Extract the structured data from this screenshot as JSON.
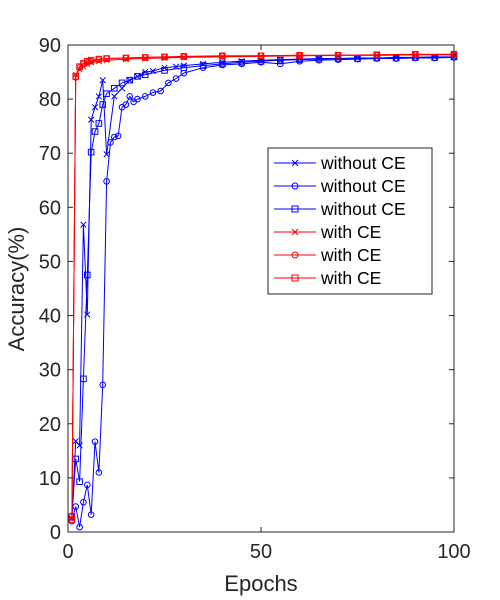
{
  "chart_data": {
    "type": "line",
    "xlabel": "Epochs",
    "ylabel": "Accuracy(%)",
    "xlim": [
      0,
      100
    ],
    "ylim": [
      0,
      90
    ],
    "x_ticks": [
      0,
      50,
      100
    ],
    "y_ticks": [
      0,
      10,
      20,
      30,
      40,
      50,
      60,
      70,
      80,
      90
    ],
    "grid": false,
    "legend_position": "right-middle",
    "series": [
      {
        "name": "without CE",
        "color": "#0000ff",
        "marker": "x",
        "x": [
          1,
          2,
          3,
          4,
          5,
          6,
          7,
          8,
          9,
          10,
          12,
          14,
          16,
          18,
          20,
          22,
          25,
          28,
          30,
          35,
          40,
          45,
          50,
          55,
          60,
          65,
          70,
          75,
          80,
          85,
          90,
          95,
          100
        ],
        "y": [
          2.5,
          16.8,
          16,
          56.8,
          40.2,
          76.2,
          78.5,
          80.5,
          83.5,
          69.8,
          80.5,
          82,
          83.5,
          84.2,
          85,
          85.2,
          85.8,
          86,
          86.2,
          86.5,
          86.8,
          87,
          87.2,
          87.3,
          87.4,
          87.5,
          87.5,
          87.6,
          87.6,
          87.7,
          87.7,
          87.8,
          87.8
        ]
      },
      {
        "name": "without CE",
        "color": "#0000ff",
        "marker": "o",
        "x": [
          1,
          2,
          3,
          4,
          5,
          6,
          7,
          8,
          9,
          10,
          11,
          12,
          13,
          14,
          15,
          16,
          17,
          18,
          20,
          22,
          24,
          26,
          28,
          30,
          35,
          40,
          45,
          50,
          55,
          60,
          65,
          70,
          75,
          80,
          85,
          90,
          95,
          100
        ],
        "y": [
          2,
          4.7,
          0.9,
          5.5,
          8.7,
          3.2,
          16.7,
          11,
          27.2,
          64.8,
          72,
          73,
          73.2,
          78.5,
          79,
          80.5,
          79.5,
          80,
          80.5,
          81.2,
          81.5,
          83,
          83.8,
          84.8,
          85.8,
          86.3,
          86.5,
          86.8,
          86.5,
          87,
          87.2,
          87.3,
          87.4,
          87.5,
          87.5,
          87.6,
          87.6,
          87.7
        ]
      },
      {
        "name": "without CE",
        "color": "#0000ff",
        "marker": "s",
        "x": [
          1,
          2,
          3,
          4,
          5,
          6,
          7,
          8,
          9,
          10,
          12,
          14,
          16,
          18,
          20,
          25,
          30,
          35,
          40,
          45,
          50,
          55,
          60,
          65,
          70,
          75,
          80,
          85,
          90,
          95,
          100
        ],
        "y": [
          2.8,
          13.5,
          9.3,
          28.3,
          47.5,
          70.2,
          74,
          75.5,
          79,
          81,
          82,
          83,
          83.5,
          84.2,
          84.5,
          85.3,
          85.8,
          86.2,
          86.5,
          86.8,
          87,
          87.2,
          87.3,
          87.4,
          87.5,
          87.5,
          87.6,
          87.6,
          87.7,
          87.7,
          87.8
        ]
      },
      {
        "name": "with CE",
        "color": "#ff0000",
        "marker": "x",
        "x": [
          1,
          2,
          3,
          4,
          5,
          6,
          8,
          10,
          15,
          20,
          25,
          30,
          40,
          50,
          60,
          70,
          80,
          90,
          100
        ],
        "y": [
          2.5,
          84.5,
          85.5,
          86,
          86.5,
          86.8,
          87,
          87.2,
          87.4,
          87.5,
          87.6,
          87.7,
          87.8,
          87.9,
          88,
          88.1,
          88.1,
          88.2,
          88.2
        ]
      },
      {
        "name": "with CE",
        "color": "#ff0000",
        "marker": "o",
        "x": [
          1,
          2,
          3,
          4,
          5,
          6,
          8,
          10,
          15,
          20,
          25,
          30,
          40,
          50,
          60,
          70,
          80,
          90,
          100
        ],
        "y": [
          3,
          84,
          85.8,
          86.5,
          86.8,
          87,
          87.3,
          87.5,
          87.6,
          87.7,
          87.8,
          87.8,
          87.9,
          88,
          88,
          88.1,
          88.1,
          88.2,
          88.2
        ]
      },
      {
        "name": "with CE",
        "color": "#ff0000",
        "marker": "s",
        "x": [
          1,
          2,
          3,
          4,
          5,
          6,
          8,
          10,
          15,
          20,
          25,
          30,
          40,
          50,
          60,
          70,
          80,
          90,
          100
        ],
        "y": [
          2.3,
          84.2,
          86,
          86.6,
          87,
          87.2,
          87.4,
          87.5,
          87.6,
          87.7,
          87.8,
          87.9,
          88,
          88,
          88.1,
          88.1,
          88.2,
          88.3,
          88.3
        ]
      }
    ]
  }
}
